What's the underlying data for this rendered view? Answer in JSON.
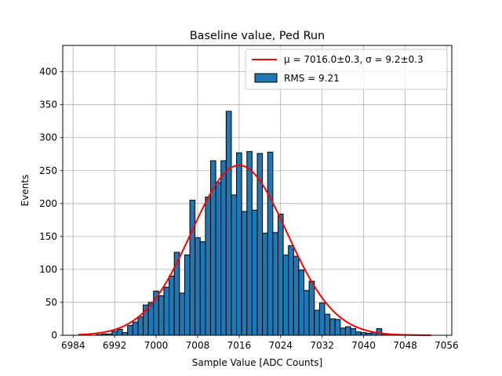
{
  "chart_data": {
    "type": "bar",
    "title": "Baseline value, Ped Run",
    "xlabel": "Sample Value [ADC Counts]",
    "ylabel": "Events",
    "xlim": [
      6982,
      7057
    ],
    "ylim": [
      0,
      440
    ],
    "xticks": [
      6984,
      6992,
      7000,
      7008,
      7016,
      7024,
      7032,
      7040,
      7048,
      7056
    ],
    "yticks": [
      0,
      50,
      100,
      150,
      200,
      250,
      300,
      350,
      400
    ],
    "grid": true,
    "legend_position": "upper right",
    "bin_width": 1,
    "series": [
      {
        "name": "RMS = 9.21",
        "kind": "histogram",
        "color": "#1f77b4",
        "edge_color": "#000000",
        "bins": [
          {
            "x": 6989,
            "y": 1
          },
          {
            "x": 6990,
            "y": 2
          },
          {
            "x": 6991,
            "y": 2
          },
          {
            "x": 6992,
            "y": 6
          },
          {
            "x": 6993,
            "y": 9
          },
          {
            "x": 6994,
            "y": 4
          },
          {
            "x": 6995,
            "y": 15
          },
          {
            "x": 6996,
            "y": 20
          },
          {
            "x": 6997,
            "y": 28
          },
          {
            "x": 6998,
            "y": 46
          },
          {
            "x": 6999,
            "y": 50
          },
          {
            "x": 7000,
            "y": 67
          },
          {
            "x": 7001,
            "y": 60
          },
          {
            "x": 7002,
            "y": 73
          },
          {
            "x": 7003,
            "y": 90
          },
          {
            "x": 7004,
            "y": 126
          },
          {
            "x": 7005,
            "y": 64
          },
          {
            "x": 7006,
            "y": 122
          },
          {
            "x": 7007,
            "y": 205
          },
          {
            "x": 7008,
            "y": 148
          },
          {
            "x": 7009,
            "y": 142
          },
          {
            "x": 7010,
            "y": 210
          },
          {
            "x": 7011,
            "y": 265
          },
          {
            "x": 7012,
            "y": 232
          },
          {
            "x": 7013,
            "y": 265
          },
          {
            "x": 7014,
            "y": 340
          },
          {
            "x": 7015,
            "y": 213
          },
          {
            "x": 7016,
            "y": 277
          },
          {
            "x": 7017,
            "y": 188
          },
          {
            "x": 7018,
            "y": 279
          },
          {
            "x": 7019,
            "y": 190
          },
          {
            "x": 7020,
            "y": 276
          },
          {
            "x": 7021,
            "y": 155
          },
          {
            "x": 7022,
            "y": 278
          },
          {
            "x": 7023,
            "y": 156
          },
          {
            "x": 7024,
            "y": 184
          },
          {
            "x": 7025,
            "y": 122
          },
          {
            "x": 7026,
            "y": 136
          },
          {
            "x": 7027,
            "y": 120
          },
          {
            "x": 7028,
            "y": 99
          },
          {
            "x": 7029,
            "y": 68
          },
          {
            "x": 7030,
            "y": 82
          },
          {
            "x": 7031,
            "y": 38
          },
          {
            "x": 7032,
            "y": 49
          },
          {
            "x": 7033,
            "y": 32
          },
          {
            "x": 7034,
            "y": 25
          },
          {
            "x": 7035,
            "y": 24
          },
          {
            "x": 7036,
            "y": 11
          },
          {
            "x": 7037,
            "y": 13
          },
          {
            "x": 7038,
            "y": 10
          },
          {
            "x": 7039,
            "y": 5
          },
          {
            "x": 7040,
            "y": 4
          },
          {
            "x": 7041,
            "y": 3
          },
          {
            "x": 7042,
            "y": 4
          },
          {
            "x": 7043,
            "y": 10
          },
          {
            "x": 7044,
            "y": 2
          },
          {
            "x": 7045,
            "y": 1
          }
        ]
      },
      {
        "name": "μ = 7016.0±0.3, σ = 9.2±0.3",
        "kind": "gaussian_fit",
        "color": "#ff0000",
        "mean": 7016.0,
        "sigma": 9.2,
        "amplitude": 258,
        "x_range": [
          6985,
          7053
        ]
      }
    ]
  }
}
